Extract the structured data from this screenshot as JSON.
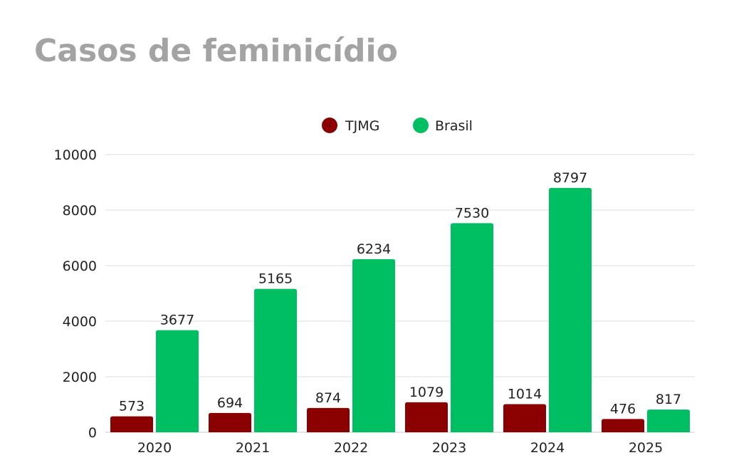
{
  "title": "Casos de feminicídio",
  "chart_data": {
    "type": "bar",
    "title": "Casos de feminicídio",
    "xlabel": "",
    "ylabel": "",
    "categories": [
      "2020",
      "2021",
      "2022",
      "2023",
      "2024",
      "2025"
    ],
    "series": [
      {
        "name": "TJMG",
        "color": "#8b0000",
        "values": [
          573,
          694,
          874,
          1079,
          1014,
          476
        ]
      },
      {
        "name": "Brasil",
        "color": "#00bf63",
        "values": [
          3677,
          5165,
          6234,
          7530,
          8797,
          817
        ]
      }
    ],
    "ylim": [
      0,
      10000
    ],
    "yticks": [
      0,
      2000,
      4000,
      6000,
      8000,
      10000
    ],
    "grid": true,
    "legend_position": "top-center"
  }
}
